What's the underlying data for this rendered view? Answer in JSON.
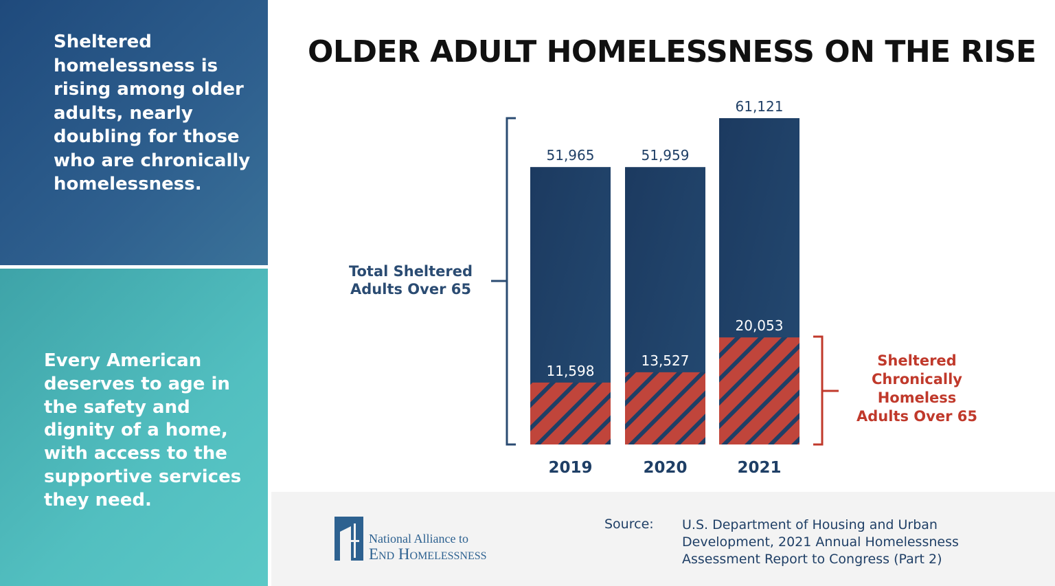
{
  "left_panel": {
    "top_text": "Sheltered homelessness is rising among older adults, nearly doubling for those who are chronically homelessness.",
    "bottom_text": "Every American deserves to age in the safety and dignity of a home, with access to the supportive services they need."
  },
  "chart_data": {
    "type": "bar",
    "title": "OLDER ADULT HOMELESSNESS ON THE RISE",
    "categories": [
      "2019",
      "2020",
      "2021"
    ],
    "series": [
      {
        "name": "Total Sheltered Adults Over 65",
        "values": [
          51965,
          51959,
          61121
        ],
        "labels": [
          "51,965",
          "51,959",
          "61,121"
        ],
        "color": "#1f3f66"
      },
      {
        "name": "Sheltered Chronically Homeless Adults Over 65",
        "values": [
          11598,
          13527,
          20053
        ],
        "labels": [
          "11,598",
          "13,527",
          "20,053"
        ],
        "color": "#c0453b",
        "pattern": "diagonal-stripes"
      }
    ],
    "ylim": [
      0,
      61121
    ],
    "grid": false,
    "legend": "side brackets"
  },
  "footer": {
    "logo_line1": "National Alliance to",
    "logo_line2": "End Homelessness",
    "source_label": "Source:",
    "source_text": "U.S. Department of Housing and Urban Development, 2021 Annual Homelessness Assessment Report to Congress (Part 2)"
  }
}
